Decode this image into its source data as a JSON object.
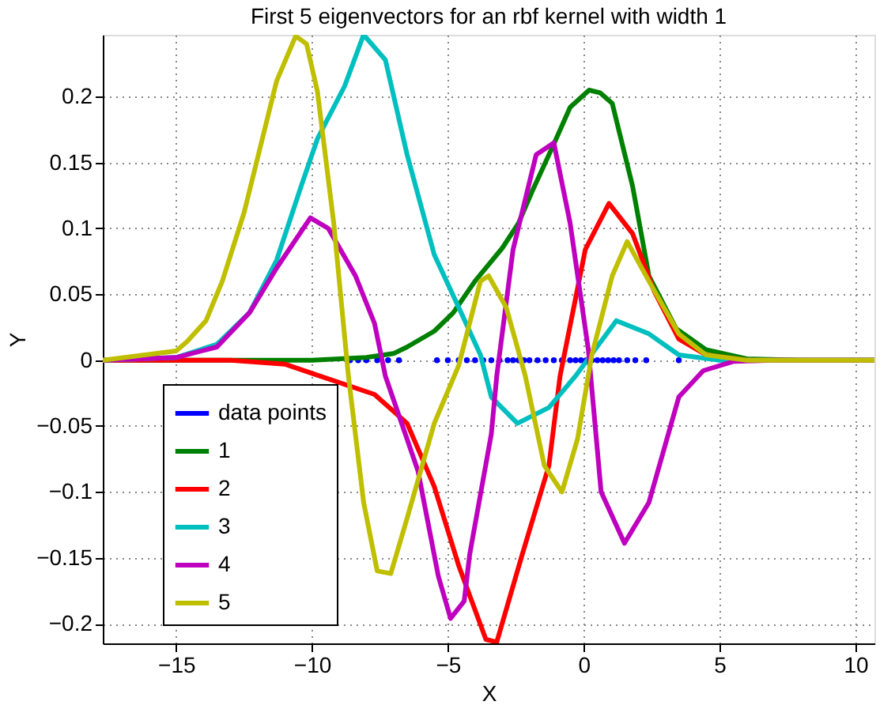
{
  "chart_data": {
    "type": "line",
    "title": "First 5 eigenvectors for an rbf kernel with width 1",
    "xlabel": "X",
    "ylabel": "Y",
    "xlim": [
      -17.7,
      10.7
    ],
    "ylim": [
      -0.215,
      0.247
    ],
    "xticks": [
      -15,
      -10,
      -5,
      0,
      5,
      10
    ],
    "yticks": [
      -0.2,
      -0.15,
      -0.1,
      -0.05,
      0,
      0.05,
      0.1,
      0.15,
      0.2
    ],
    "grid": true,
    "legend": "bottom left",
    "line_style": "solid",
    "marker": "none",
    "series": [
      {
        "name": "data points",
        "type": "scatter",
        "marker": "circle",
        "color": "#0000ff",
        "x": [
          -8.6,
          -8.3,
          -8.0,
          -7.6,
          -7.2,
          -6.8,
          -5.4,
          -5.0,
          -4.6,
          -4.3,
          -4.0,
          -3.7,
          -3.4,
          -3.1,
          -2.8,
          -2.6,
          -2.4,
          -2.2,
          -2.0,
          -1.7,
          -1.4,
          -1.1,
          -0.8,
          -0.5,
          -0.3,
          -0.1,
          0.1,
          0.3,
          0.5,
          0.7,
          0.9,
          1.1,
          1.3,
          1.6,
          1.9,
          2.3,
          3.5
        ],
        "values": [
          0,
          0,
          0,
          0,
          0,
          0,
          0,
          0,
          0,
          0,
          0,
          0,
          0,
          0,
          0,
          0,
          0,
          0,
          0,
          0,
          0,
          0,
          0,
          0,
          0,
          0,
          0,
          0,
          0,
          0,
          0,
          0,
          0,
          0,
          0,
          0,
          0
        ]
      },
      {
        "name": "1",
        "color": "#008000",
        "x": [
          -17.7,
          -10,
          -8,
          -7,
          -6.5,
          -5.5,
          -4.8,
          -4,
          -3,
          -2.4,
          -1.9,
          -1.1,
          -0.5,
          0.2,
          0.6,
          1.05,
          1.8,
          2.4,
          3.4,
          4.5,
          6,
          8,
          10.7
        ],
        "values": [
          0,
          0,
          0.002,
          0.005,
          0.01,
          0.022,
          0.036,
          0.06,
          0.085,
          0.104,
          0.128,
          0.164,
          0.192,
          0.205,
          0.203,
          0.195,
          0.132,
          0.064,
          0.024,
          0.008,
          0.001,
          0,
          0
        ]
      },
      {
        "name": "2",
        "color": "#ff0000",
        "x": [
          -17.7,
          -13,
          -11,
          -10,
          -7.7,
          -6.5,
          -5.5,
          -4.6,
          -3.6,
          -3.2,
          -2.27,
          -1.28,
          -0.87,
          0.06,
          0.93,
          1.8,
          2.6,
          3.5,
          4.5,
          6,
          10.7
        ],
        "values": [
          0,
          0,
          -0.003,
          -0.01,
          -0.026,
          -0.048,
          -0.096,
          -0.156,
          -0.212,
          -0.214,
          -0.148,
          -0.08,
          -0.012,
          0.084,
          0.119,
          0.096,
          0.052,
          0.016,
          0.004,
          0,
          0
        ]
      },
      {
        "name": "3",
        "color": "#00bfbf",
        "x": [
          -17.7,
          -15,
          -13.5,
          -12.3,
          -11.3,
          -10.4,
          -9.8,
          -8.8,
          -8.1,
          -7.3,
          -6.5,
          -5.5,
          -4.6,
          -3.8,
          -3.4,
          -2.44,
          -1.28,
          -0.3,
          1.2,
          2.4,
          3.5,
          5,
          10.7
        ],
        "values": [
          0,
          0.002,
          0.012,
          0.036,
          0.076,
          0.132,
          0.168,
          0.208,
          0.247,
          0.228,
          0.156,
          0.08,
          0.04,
          0.004,
          -0.028,
          -0.048,
          -0.036,
          -0.012,
          0.03,
          0.02,
          0.004,
          0,
          0
        ]
      },
      {
        "name": "4",
        "color": "#bf00bf",
        "x": [
          -17.7,
          -15,
          -13.5,
          -12.3,
          -11.3,
          -10.06,
          -9.4,
          -8.4,
          -7.7,
          -7.3,
          -6.1,
          -5.35,
          -4.9,
          -4.4,
          -4.2,
          -3.4,
          -3.2,
          -2.6,
          -1.75,
          -1.1,
          -0.5,
          0.17,
          0.64,
          1.5,
          2.4,
          3.5,
          4.4,
          5.5,
          7,
          10.7
        ],
        "values": [
          0,
          0.002,
          0.01,
          0.036,
          0.07,
          0.108,
          0.1,
          0.064,
          0.028,
          -0.012,
          -0.084,
          -0.164,
          -0.196,
          -0.183,
          -0.148,
          -0.056,
          -0.012,
          0.084,
          0.156,
          0.165,
          0.104,
          0.008,
          -0.1,
          -0.139,
          -0.108,
          -0.028,
          -0.008,
          -0.001,
          0,
          0
        ]
      },
      {
        "name": "5",
        "color": "#bfbf00",
        "x": [
          -17.7,
          -15,
          -14.6,
          -13.9,
          -13.3,
          -12.5,
          -11.3,
          -10.6,
          -10.2,
          -9.8,
          -9.2,
          -8.66,
          -8.1,
          -7.6,
          -7.1,
          -6.5,
          -5.5,
          -4.6,
          -3.8,
          -3.5,
          -2.85,
          -2.15,
          -1.45,
          -0.8,
          -0.23,
          0.3,
          1.05,
          1.6,
          2.4,
          3.5,
          4.5,
          6,
          10.7
        ],
        "values": [
          0,
          0.007,
          0.014,
          0.03,
          0.06,
          0.112,
          0.212,
          0.246,
          0.24,
          0.204,
          0.104,
          -0.012,
          -0.108,
          -0.16,
          -0.162,
          -0.12,
          -0.048,
          -0.004,
          0.06,
          0.064,
          0.04,
          -0.012,
          -0.08,
          -0.1,
          -0.06,
          0.004,
          0.064,
          0.09,
          0.06,
          0.02,
          0.004,
          0,
          0
        ]
      }
    ]
  }
}
